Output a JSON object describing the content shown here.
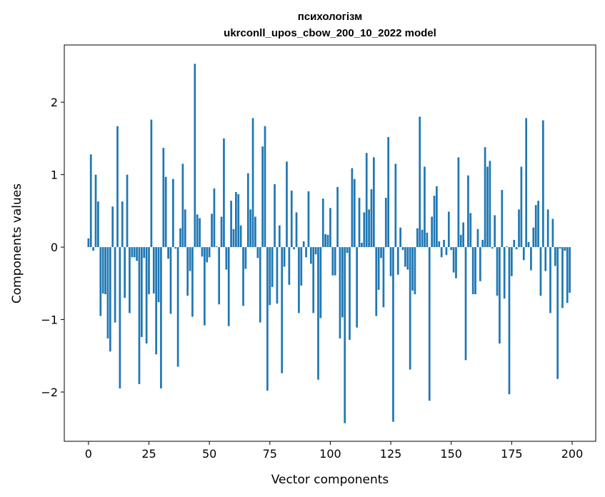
{
  "chart_data": {
    "type": "bar",
    "title_lines": [
      "психологізм",
      "ukrconll_upos_cbow_200_10_2022 model"
    ],
    "xlabel": "Vector components",
    "ylabel": "Components values",
    "xlim": [
      -10,
      209.75
    ],
    "ylim": [
      -2.68,
      2.79
    ],
    "xticks": [
      0,
      25,
      50,
      75,
      100,
      125,
      150,
      175,
      200
    ],
    "xtick_labels": [
      "0",
      "25",
      "50",
      "75",
      "100",
      "125",
      "150",
      "175",
      "200"
    ],
    "yticks": [
      -2,
      -1,
      0,
      1,
      2
    ],
    "ytick_labels": [
      "−2",
      "−1",
      "0",
      "1",
      "2"
    ],
    "grid": false,
    "bar_color": "#1f77b4",
    "values": [
      0.12,
      1.28,
      -0.05,
      1.0,
      0.63,
      -0.95,
      -0.64,
      -0.65,
      -1.26,
      -1.44,
      0.56,
      -1.04,
      1.67,
      -1.95,
      0.63,
      -0.7,
      1.0,
      -0.91,
      -0.14,
      -0.14,
      -0.19,
      -1.89,
      -1.24,
      -0.15,
      -1.33,
      -0.65,
      1.76,
      -0.64,
      -1.48,
      -0.76,
      -1.95,
      1.37,
      0.97,
      -0.16,
      -0.92,
      0.94,
      -0.02,
      -1.65,
      0.26,
      1.15,
      0.52,
      -0.67,
      -0.33,
      -0.96,
      2.53,
      0.45,
      0.4,
      -0.13,
      -1.08,
      -0.21,
      -0.14,
      0.46,
      0.81,
      0.01,
      -0.79,
      0.42,
      1.5,
      -0.31,
      -1.09,
      0.64,
      0.25,
      0.76,
      0.73,
      0.3,
      -0.81,
      -0.3,
      1.02,
      0.52,
      1.78,
      0.42,
      -0.15,
      -1.04,
      1.39,
      1.67,
      -1.98,
      -0.8,
      -0.55,
      0.87,
      -0.78,
      0.3,
      -1.74,
      -0.27,
      1.18,
      -0.52,
      0.78,
      -0.03,
      0.48,
      -0.91,
      -0.53,
      0.08,
      -0.14,
      0.77,
      -0.23,
      -0.91,
      -0.1,
      -1.83,
      -0.98,
      0.67,
      0.18,
      0.17,
      0.54,
      -0.39,
      -0.39,
      0.83,
      -1.26,
      -0.97,
      -2.43,
      -0.08,
      -1.28,
      1.09,
      0.94,
      -1.11,
      0.68,
      0.06,
      0.48,
      1.3,
      0.52,
      0.8,
      1.24,
      -0.95,
      -0.59,
      -0.15,
      -0.83,
      0.68,
      1.52,
      -0.4,
      -2.41,
      1.15,
      -0.38,
      0.27,
      -0.04,
      -0.27,
      -0.31,
      -1.69,
      -0.6,
      -0.65,
      0.26,
      1.8,
      0.24,
      1.11,
      0.2,
      -2.12,
      0.42,
      0.71,
      0.84,
      0.08,
      -0.14,
      0.1,
      -0.11,
      0.49,
      -0.04,
      -0.35,
      -0.43,
      1.24,
      0.17,
      0.34,
      -1.56,
      0.99,
      0.47,
      -0.65,
      -0.65,
      0.25,
      -0.47,
      0.1,
      1.38,
      1.11,
      1.19,
      -0.02,
      0.44,
      -0.67,
      -1.33,
      0.79,
      -0.71,
      0.01,
      -2.03,
      -0.4,
      0.1,
      -0.03,
      0.52,
      1.11,
      -0.18,
      1.78,
      0.07,
      -0.32,
      0.27,
      0.58,
      0.64,
      -0.67,
      1.75,
      -0.33,
      0.52,
      -0.91,
      0.39,
      -0.26,
      -1.82,
      -0.02,
      -0.84,
      -0.05,
      -0.77,
      -0.63
    ]
  }
}
